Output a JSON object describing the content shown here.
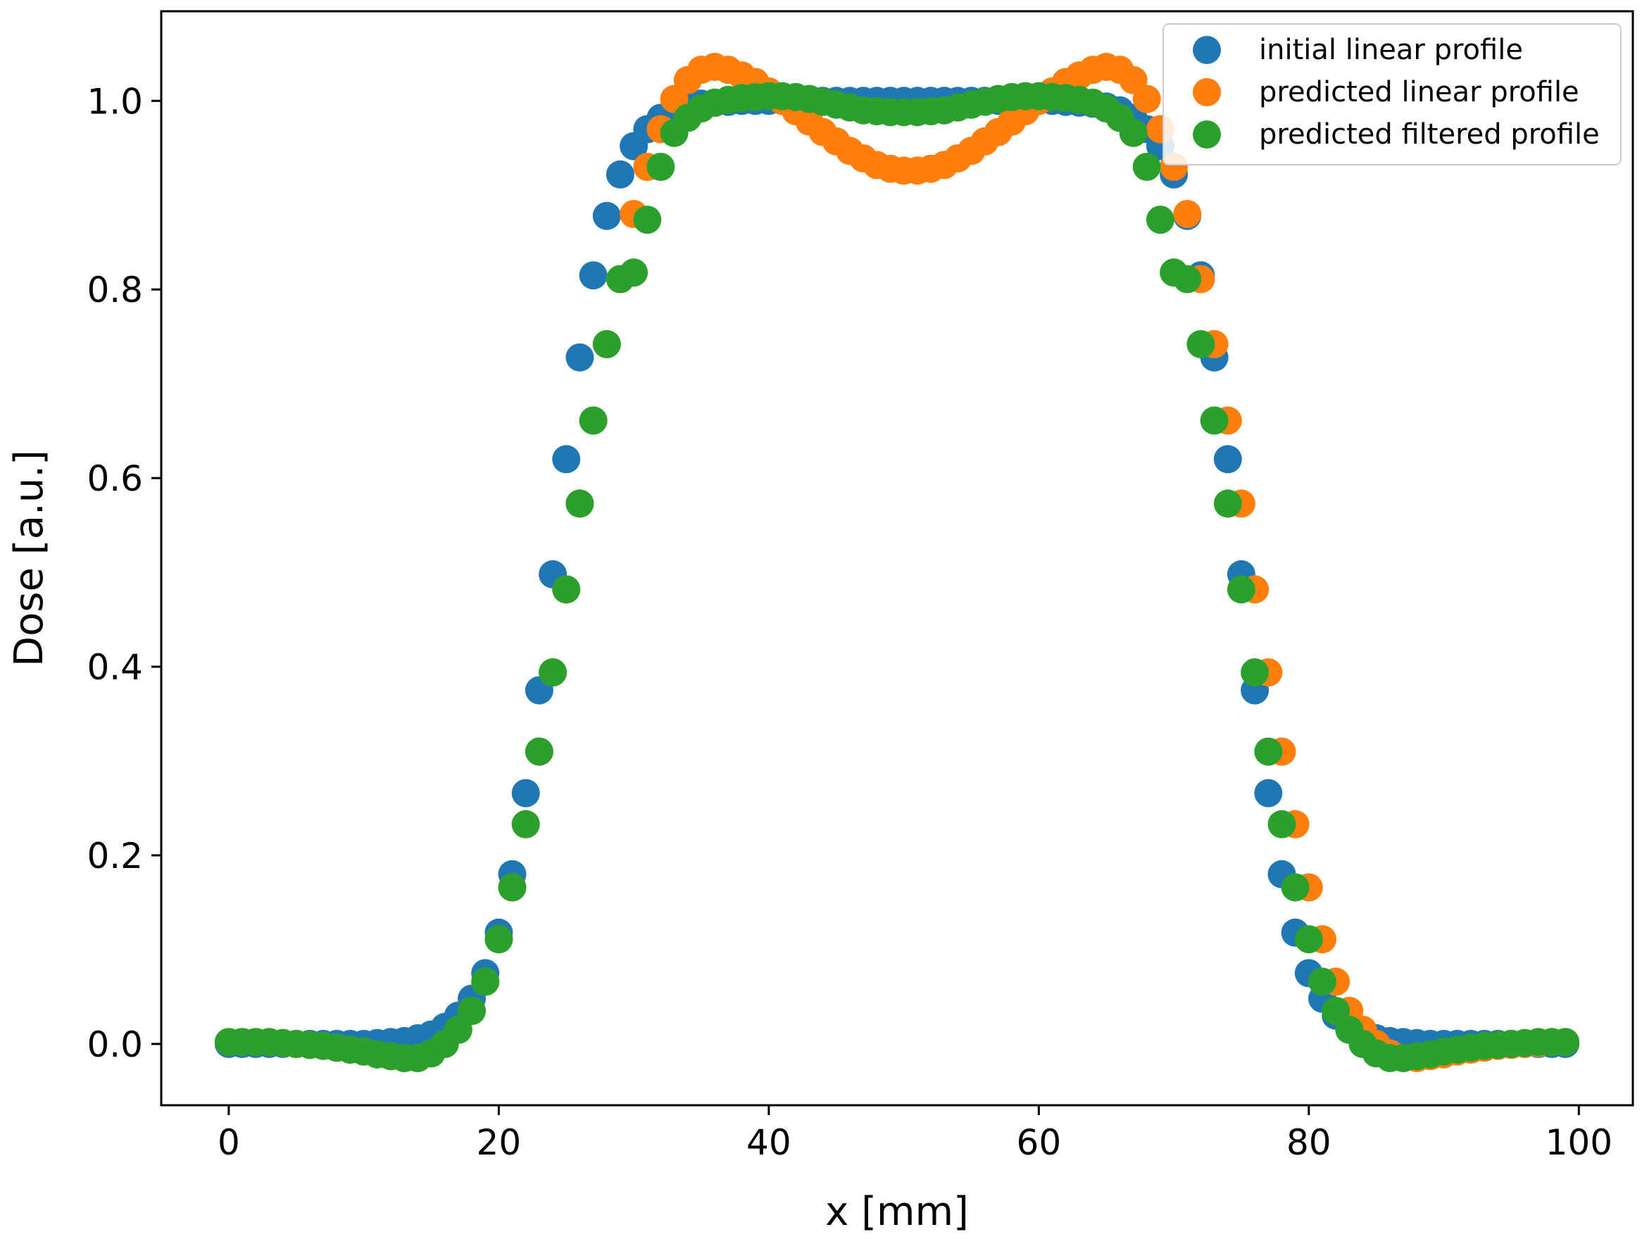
{
  "chart_data": {
    "type": "scatter",
    "title": "",
    "xlabel": "x [mm]",
    "ylabel": "Dose [a.u.]",
    "xlim": [
      -5,
      104
    ],
    "ylim": [
      -0.065,
      1.095
    ],
    "xticks": [
      0,
      20,
      40,
      60,
      80,
      100
    ],
    "yticks": [
      0.0,
      0.2,
      0.4,
      0.6,
      0.8,
      1.0
    ],
    "xtick_labels": [
      "0",
      "20",
      "40",
      "60",
      "80",
      "100"
    ],
    "ytick_labels": [
      "0.0",
      "0.2",
      "0.4",
      "0.6",
      "0.8",
      "1.0"
    ],
    "grid": false,
    "legend_position": "top-right",
    "x": [
      0,
      1,
      2,
      3,
      4,
      5,
      6,
      7,
      8,
      9,
      10,
      11,
      12,
      13,
      14,
      15,
      16,
      17,
      18,
      19,
      20,
      21,
      22,
      23,
      24,
      25,
      26,
      27,
      28,
      29,
      30,
      31,
      32,
      33,
      34,
      35,
      36,
      37,
      38,
      39,
      40,
      41,
      42,
      43,
      44,
      45,
      46,
      47,
      48,
      49,
      50,
      51,
      52,
      53,
      54,
      55,
      56,
      57,
      58,
      59,
      60,
      61,
      62,
      63,
      64,
      65,
      66,
      67,
      68,
      69,
      70,
      71,
      72,
      73,
      74,
      75,
      76,
      77,
      78,
      79,
      80,
      81,
      82,
      83,
      84,
      85,
      86,
      87,
      88,
      89,
      90,
      91,
      92,
      93,
      94,
      95,
      96,
      97,
      98,
      99
    ],
    "series": [
      {
        "name": "initial linear profile",
        "color": "#1f77b4",
        "values": [
          0,
          0,
          0,
          0,
          0,
          0,
          0,
          0,
          0,
          0,
          0,
          0.001,
          0.002,
          0.003,
          0.006,
          0.01,
          0.018,
          0.03,
          0.048,
          0.075,
          0.118,
          0.18,
          0.266,
          0.375,
          0.498,
          0.62,
          0.728,
          0.815,
          0.878,
          0.922,
          0.952,
          0.97,
          0.982,
          0.99,
          0.994,
          0.997,
          0.998,
          0.999,
          1.0,
          1.0,
          1.0,
          1.0,
          1.0,
          1.0,
          1.0,
          1.0,
          1.0,
          1.0,
          1.0,
          1.0,
          1.0,
          1.0,
          1.0,
          1.0,
          1.0,
          1.0,
          1.0,
          1.0,
          1.0,
          1.0,
          1.0,
          1.0,
          0.999,
          0.998,
          0.997,
          0.994,
          0.99,
          0.982,
          0.97,
          0.952,
          0.922,
          0.878,
          0.815,
          0.728,
          0.62,
          0.498,
          0.375,
          0.266,
          0.18,
          0.118,
          0.075,
          0.048,
          0.03,
          0.018,
          0.01,
          0.006,
          0.003,
          0.002,
          0.001,
          0,
          0,
          0,
          0,
          0,
          0,
          0,
          0,
          0,
          0,
          0
        ]
      },
      {
        "name": "predicted linear profile",
        "color": "#ff7f0e",
        "values": [
          0.002,
          0.002,
          0.002,
          0.002,
          0.001,
          0.0,
          -0.001,
          -0.002,
          -0.004,
          -0.006,
          -0.008,
          -0.011,
          -0.013,
          -0.015,
          -0.015,
          -0.01,
          0.0,
          0.015,
          0.035,
          0.066,
          0.111,
          0.166,
          0.233,
          0.31,
          0.394,
          0.482,
          0.573,
          0.661,
          0.742,
          0.811,
          0.88,
          0.93,
          0.97,
          1.002,
          1.022,
          1.033,
          1.036,
          1.033,
          1.027,
          1.02,
          1.01,
          1.0,
          0.989,
          0.978,
          0.967,
          0.957,
          0.947,
          0.939,
          0.932,
          0.928,
          0.926,
          0.926,
          0.928,
          0.932,
          0.939,
          0.947,
          0.957,
          0.967,
          0.978,
          0.989,
          1.0,
          1.01,
          1.02,
          1.027,
          1.033,
          1.036,
          1.033,
          1.022,
          1.002,
          0.97,
          0.93,
          0.88,
          0.811,
          0.742,
          0.661,
          0.573,
          0.482,
          0.394,
          0.31,
          0.233,
          0.166,
          0.111,
          0.066,
          0.035,
          0.015,
          0.0,
          -0.01,
          -0.015,
          -0.015,
          -0.013,
          -0.011,
          -0.008,
          -0.006,
          -0.004,
          -0.002,
          -0.001,
          0.0,
          0.001,
          0.002,
          0.002
        ]
      },
      {
        "name": "predicted filtered profile",
        "color": "#2ca02c",
        "values": [
          0.002,
          0.002,
          0.002,
          0.002,
          0.001,
          0.0,
          -0.001,
          -0.002,
          -0.004,
          -0.006,
          -0.008,
          -0.011,
          -0.013,
          -0.015,
          -0.015,
          -0.01,
          0.0,
          0.015,
          0.035,
          0.066,
          0.111,
          0.166,
          0.233,
          0.31,
          0.394,
          0.482,
          0.573,
          0.661,
          0.742,
          0.811,
          0.818,
          0.874,
          0.93,
          0.966,
          0.982,
          0.992,
          0.998,
          1.001,
          1.003,
          1.004,
          1.005,
          1.005,
          1.004,
          1.002,
          0.999,
          0.996,
          0.993,
          0.99,
          0.989,
          0.988,
          0.988,
          0.988,
          0.989,
          0.99,
          0.993,
          0.996,
          0.999,
          1.002,
          1.004,
          1.005,
          1.005,
          1.004,
          1.003,
          1.001,
          0.998,
          0.992,
          0.982,
          0.966,
          0.93,
          0.874,
          0.818,
          0.811,
          0.742,
          0.661,
          0.573,
          0.482,
          0.394,
          0.31,
          0.233,
          0.166,
          0.111,
          0.066,
          0.035,
          0.015,
          0.0,
          -0.01,
          -0.015,
          -0.015,
          -0.013,
          -0.011,
          -0.008,
          -0.006,
          -0.004,
          -0.002,
          -0.001,
          0.0,
          0.001,
          0.002,
          0.002,
          0.002
        ]
      }
    ]
  }
}
